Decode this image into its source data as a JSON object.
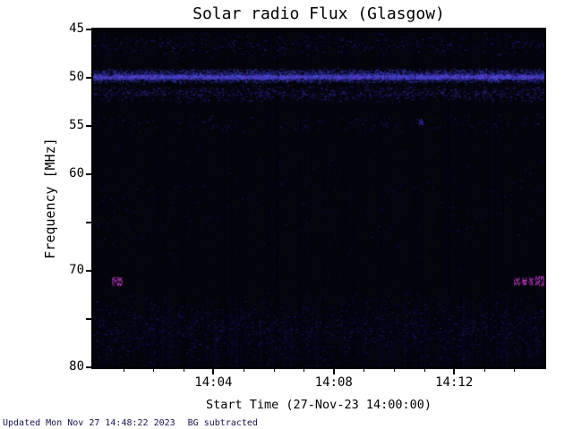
{
  "page": {
    "background": "#ffffff"
  },
  "chart_data": {
    "type": "heatmap",
    "title": "Solar radio Flux (Glasgow)",
    "xlabel": "Start Time (27-Nov-23 14:00:00)",
    "ylabel": "Frequency [MHz]",
    "x_start_time": "14:00:00",
    "x_unit": "minutes since 14:00",
    "xlim_minutes": [
      0,
      15
    ],
    "ylim": [
      45,
      80
    ],
    "y_inverted": true,
    "grid": false,
    "legend": false,
    "background": "#04040c",
    "xticks": [
      {
        "minute": 4,
        "label": "14:04"
      },
      {
        "minute": 8,
        "label": "14:08"
      },
      {
        "minute": 12,
        "label": "14:12"
      }
    ],
    "xtick_minor_minutes": [
      1,
      2,
      3,
      5,
      6,
      7,
      9,
      10,
      11,
      13,
      14
    ],
    "yticks": [
      {
        "value": 45,
        "label": "45"
      },
      {
        "value": 50,
        "label": "50"
      },
      {
        "value": 55,
        "label": "55"
      },
      {
        "value": 60,
        "label": "60"
      },
      {
        "value": 65,
        "label": ""
      },
      {
        "value": 70,
        "label": "70"
      },
      {
        "value": 75,
        "label": ""
      },
      {
        "value": 80,
        "label": "80"
      }
    ],
    "features": [
      {
        "kind": "noise",
        "density": 0.018,
        "colors": [
          "#0b0b2e",
          "#0e0e3a",
          "#090926"
        ]
      },
      {
        "kind": "vertical-lines",
        "count": 70,
        "alpha_min": 0.03,
        "alpha_max": 0.09,
        "color": "#1a1a66"
      },
      {
        "kind": "speckle-band",
        "f0": 45.2,
        "f1": 48.0,
        "density": 0.045,
        "colors": [
          "#15155a",
          "#1d1d73",
          "#262699"
        ]
      },
      {
        "kind": "speckle-band",
        "f0": 49.0,
        "f1": 50.6,
        "density": 0.65,
        "colors": [
          "#23238c",
          "#3333b3",
          "#4444cc",
          "#2a2a80"
        ]
      },
      {
        "kind": "speckle-band",
        "f0": 49.6,
        "f1": 50.2,
        "density": 1.0,
        "colors": [
          "#4646cf",
          "#5a5ae0",
          "#3a3ab8",
          "#6a3ad0"
        ]
      },
      {
        "kind": "speckle-band",
        "f0": 50.6,
        "f1": 52.6,
        "density": 0.12,
        "colors": [
          "#26268c",
          "#3a2a9e",
          "#1e1e70"
        ]
      },
      {
        "kind": "speckle-band",
        "f0": 53.5,
        "f1": 56.0,
        "density": 0.02,
        "colors": [
          "#1b1b66",
          "#232380"
        ]
      },
      {
        "kind": "speckle-band",
        "f0": 56.0,
        "f1": 71.5,
        "density": 0.008,
        "colors": [
          "#14144d",
          "#1a1a60"
        ]
      },
      {
        "kind": "vertical-stripes",
        "f0": 72.0,
        "f1": 80.0,
        "count": 150,
        "alpha_min": 0.08,
        "alpha_max": 0.28,
        "color": "#12124d"
      },
      {
        "kind": "speckle-band",
        "f0": 72.0,
        "f1": 80.0,
        "density": 0.06,
        "colors": [
          "#17175c",
          "#202074",
          "#12124a"
        ]
      },
      {
        "kind": "burst",
        "t0": 0.62,
        "t1": 0.95,
        "f0": 70.6,
        "f1": 71.5,
        "colors": [
          "#c63ac6",
          "#e24ae2",
          "#9c2a9c"
        ]
      },
      {
        "kind": "burst",
        "t0": 10.82,
        "t1": 10.98,
        "f0": 54.2,
        "f1": 54.8,
        "colors": [
          "#2e2eb0",
          "#3a3ac4"
        ]
      },
      {
        "kind": "burst",
        "t0": 13.98,
        "t1": 14.18,
        "f0": 70.6,
        "f1": 71.4,
        "colors": [
          "#c63ac6",
          "#e24ae2",
          "#9c2a9c"
        ]
      },
      {
        "kind": "burst",
        "t0": 14.24,
        "t1": 14.4,
        "f0": 70.6,
        "f1": 71.4,
        "colors": [
          "#c63ac6",
          "#e24ae2"
        ]
      },
      {
        "kind": "burst",
        "t0": 14.46,
        "t1": 14.62,
        "f0": 70.6,
        "f1": 71.4,
        "colors": [
          "#c63ac6",
          "#b032b0"
        ]
      },
      {
        "kind": "burst",
        "t0": 14.68,
        "t1": 14.84,
        "f0": 70.5,
        "f1": 71.4,
        "colors": [
          "#e24ae2",
          "#c63ac6"
        ]
      },
      {
        "kind": "burst",
        "t0": 14.88,
        "t1": 15.0,
        "f0": 70.5,
        "f1": 71.5,
        "colors": [
          "#c63ac6",
          "#e24ae2"
        ]
      }
    ]
  },
  "footer": {
    "updated": "Updated Mon Nov 27 14:48:22 2023",
    "note": "BG subtracted",
    "color": "#14144e"
  }
}
